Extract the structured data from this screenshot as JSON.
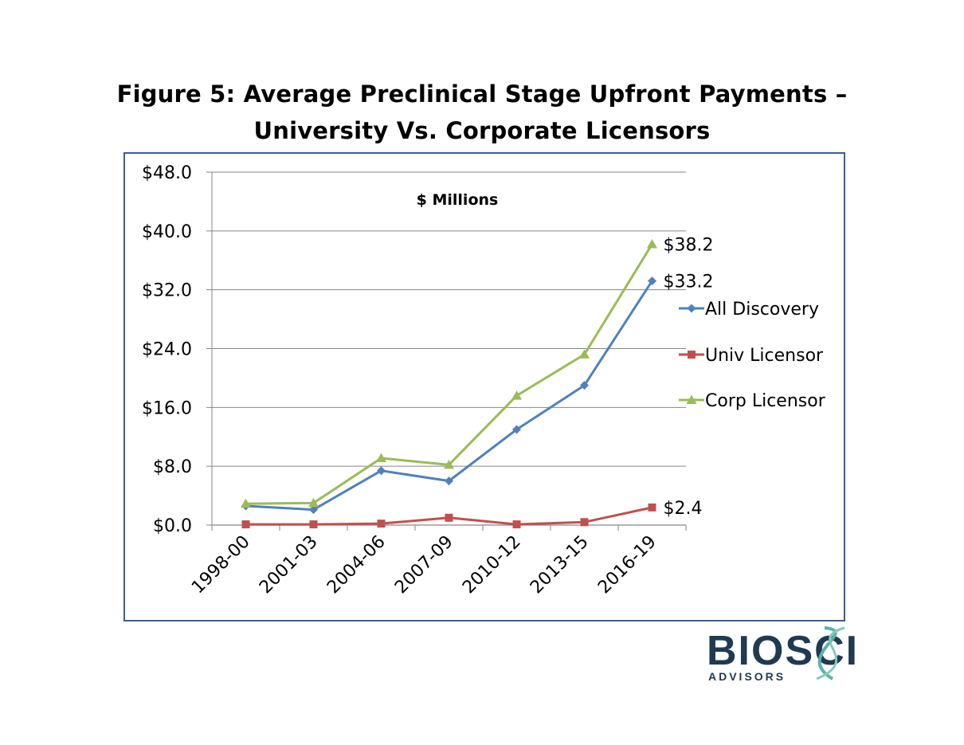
{
  "title_line1": "Figure 5:  Average Preclinical Stage Upfront Payments –",
  "title_line2": "University Vs. Corporate Licensors",
  "logo": {
    "text_main": "BIOSCI",
    "text_sub": "ADVISORS"
  },
  "colors": {
    "frame": "#3d5f8e",
    "all_discovery": "#4f81bd",
    "univ": "#c0504d",
    "corp": "#9bbb59",
    "grid": "#868686"
  },
  "chart_data": {
    "type": "line",
    "subtitle": "$ Millions",
    "categories": [
      "1998-00",
      "2001-03",
      "2004-06",
      "2007-09",
      "2010-12",
      "2013-15",
      "2016-19"
    ],
    "yticks": [
      "$0.0",
      "$8.0",
      "$16.0",
      "$24.0",
      "$32.0",
      "$40.0",
      "$48.0"
    ],
    "ylim": [
      0,
      48
    ],
    "grid": true,
    "legend_position": "right",
    "series": [
      {
        "name": "All Discovery",
        "marker": "diamond",
        "values": [
          2.6,
          2.1,
          7.4,
          6.0,
          13.0,
          19.0,
          33.2
        ],
        "end_label": "$33.2"
      },
      {
        "name": "Univ Licensor",
        "marker": "square",
        "values": [
          0.1,
          0.1,
          0.2,
          1.0,
          0.1,
          0.4,
          2.4
        ],
        "end_label": "$2.4"
      },
      {
        "name": "Corp Licensor",
        "marker": "triangle",
        "values": [
          2.9,
          3.0,
          9.1,
          8.2,
          17.6,
          23.2,
          38.2
        ],
        "end_label": "$38.2"
      }
    ]
  }
}
